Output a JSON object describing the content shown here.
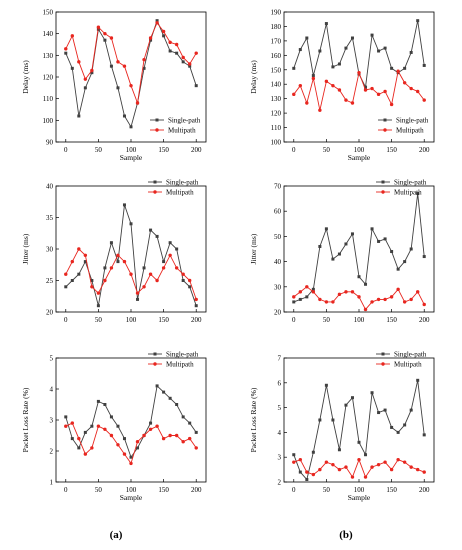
{
  "panel_labels": [
    "(a)",
    "(b)"
  ],
  "colors": {
    "single": "#404040",
    "multi": "#e8261f"
  },
  "chart_data": [
    {
      "type": "line",
      "title": "",
      "xlabel": "Sample",
      "ylabel": "Delay (ms)",
      "xlim": [
        -15,
        215
      ],
      "ylim": [
        90,
        150
      ],
      "xticks": [
        0,
        50,
        100,
        150,
        200
      ],
      "yticks": [
        90,
        100,
        110,
        120,
        130,
        140,
        150
      ],
      "legend": "bottom-right",
      "series": [
        {
          "name": "Single-path",
          "x": [
            0,
            10,
            20,
            30,
            40,
            50,
            60,
            70,
            80,
            90,
            100,
            110,
            120,
            130,
            140,
            150,
            160,
            170,
            180,
            190,
            200
          ],
          "y": [
            131,
            124,
            102,
            115,
            122,
            142,
            137,
            125,
            115,
            102,
            97,
            108,
            124,
            137,
            146,
            139,
            132,
            131,
            127,
            125,
            116
          ]
        },
        {
          "name": "Multipath",
          "x": [
            0,
            10,
            20,
            30,
            40,
            50,
            60,
            70,
            80,
            90,
            100,
            110,
            120,
            130,
            140,
            150,
            160,
            170,
            180,
            190,
            200
          ],
          "y": [
            133,
            139,
            127,
            119,
            123,
            143,
            140,
            138,
            127,
            125,
            116,
            108,
            128,
            138,
            145,
            141,
            136,
            135,
            129,
            126,
            131
          ]
        }
      ]
    },
    {
      "type": "line",
      "title": "",
      "xlabel": "Sample",
      "ylabel": "Delay (ms)",
      "xlim": [
        -15,
        215
      ],
      "ylim": [
        100,
        190
      ],
      "xticks": [
        0,
        50,
        100,
        150,
        200
      ],
      "yticks": [
        100,
        110,
        120,
        130,
        140,
        150,
        160,
        170,
        180,
        190
      ],
      "legend": "bottom-right",
      "series": [
        {
          "name": "Single-path",
          "x": [
            0,
            10,
            20,
            30,
            40,
            50,
            60,
            70,
            80,
            90,
            100,
            110,
            120,
            130,
            140,
            150,
            160,
            170,
            180,
            190,
            200
          ],
          "y": [
            151,
            164,
            172,
            146,
            163,
            182,
            152,
            154,
            165,
            172,
            147,
            138,
            174,
            163,
            165,
            151,
            148,
            151,
            162,
            184,
            153
          ]
        },
        {
          "name": "Multipath",
          "x": [
            0,
            10,
            20,
            30,
            40,
            50,
            60,
            70,
            80,
            90,
            100,
            110,
            120,
            130,
            140,
            150,
            160,
            170,
            180,
            190,
            200
          ],
          "y": [
            133,
            139,
            127,
            144,
            122,
            142,
            139,
            136,
            129,
            127,
            148,
            136,
            137,
            133,
            135,
            126,
            149,
            141,
            137,
            135,
            129
          ]
        }
      ]
    },
    {
      "type": "line",
      "title": "",
      "xlabel": "",
      "ylabel": "Jitter (ms)",
      "xlim": [
        -15,
        215
      ],
      "ylim": [
        20,
        40
      ],
      "xticks": [
        0,
        50,
        100,
        150,
        200
      ],
      "yticks": [
        20,
        25,
        30,
        35,
        40
      ],
      "legend": "top-right",
      "series": [
        {
          "name": "Single-path",
          "x": [
            0,
            10,
            20,
            30,
            40,
            50,
            60,
            70,
            80,
            90,
            100,
            110,
            120,
            130,
            140,
            150,
            160,
            170,
            180,
            190,
            200
          ],
          "y": [
            24,
            25,
            26,
            28,
            25,
            21,
            27,
            31,
            28,
            37,
            34,
            22,
            27,
            33,
            32,
            28,
            31,
            30,
            25,
            24,
            21
          ]
        },
        {
          "name": "Multipath",
          "x": [
            0,
            10,
            20,
            30,
            40,
            50,
            60,
            70,
            80,
            90,
            100,
            110,
            120,
            130,
            140,
            150,
            160,
            170,
            180,
            190,
            200
          ],
          "y": [
            26,
            28,
            30,
            29,
            24,
            23,
            25,
            27,
            29,
            28,
            26,
            23,
            24,
            26,
            25,
            27,
            29,
            27,
            26,
            25,
            22
          ]
        }
      ]
    },
    {
      "type": "line",
      "title": "",
      "xlabel": "",
      "ylabel": "Jitter (ms)",
      "xlim": [
        -15,
        215
      ],
      "ylim": [
        20,
        70
      ],
      "xticks": [
        0,
        50,
        100,
        150,
        200
      ],
      "yticks": [
        20,
        30,
        40,
        50,
        60,
        70
      ],
      "legend": "top-right",
      "series": [
        {
          "name": "Single-path",
          "x": [
            0,
            10,
            20,
            30,
            40,
            50,
            60,
            70,
            80,
            90,
            100,
            110,
            120,
            130,
            140,
            150,
            160,
            170,
            180,
            190,
            200
          ],
          "y": [
            24,
            25,
            26,
            29,
            46,
            53,
            41,
            43,
            47,
            51,
            34,
            31,
            53,
            48,
            49,
            44,
            37,
            40,
            45,
            67,
            42
          ]
        },
        {
          "name": "Multipath",
          "x": [
            0,
            10,
            20,
            30,
            40,
            50,
            60,
            70,
            80,
            90,
            100,
            110,
            120,
            130,
            140,
            150,
            160,
            170,
            180,
            190,
            200
          ],
          "y": [
            26,
            28,
            30,
            28,
            25,
            24,
            24,
            27,
            28,
            28,
            26,
            21,
            24,
            25,
            25,
            26,
            29,
            24,
            25,
            28,
            23
          ]
        }
      ]
    },
    {
      "type": "line",
      "title": "",
      "xlabel": "Sample",
      "ylabel": "Packet Loss Rate (%)",
      "xlim": [
        -15,
        215
      ],
      "ylim": [
        1,
        5
      ],
      "xticks": [
        0,
        50,
        100,
        150,
        200
      ],
      "yticks": [
        1,
        2,
        3,
        4,
        5
      ],
      "legend": "top-right",
      "series": [
        {
          "name": "Single-path",
          "x": [
            0,
            10,
            20,
            30,
            40,
            50,
            60,
            70,
            80,
            90,
            100,
            110,
            120,
            130,
            140,
            150,
            160,
            170,
            180,
            190,
            200
          ],
          "y": [
            3.1,
            2.4,
            2.1,
            2.6,
            2.8,
            3.6,
            3.5,
            3.1,
            2.8,
            2.4,
            1.8,
            2.1,
            2.5,
            2.9,
            4.1,
            3.9,
            3.7,
            3.5,
            3.1,
            2.9,
            2.6
          ]
        },
        {
          "name": "Multipath",
          "x": [
            0,
            10,
            20,
            30,
            40,
            50,
            60,
            70,
            80,
            90,
            100,
            110,
            120,
            130,
            140,
            150,
            160,
            170,
            180,
            190,
            200
          ],
          "y": [
            2.8,
            2.9,
            2.4,
            1.9,
            2.1,
            2.8,
            2.7,
            2.5,
            2.2,
            1.9,
            1.6,
            2.3,
            2.5,
            2.7,
            2.8,
            2.4,
            2.5,
            2.5,
            2.3,
            2.4,
            2.1
          ]
        }
      ]
    },
    {
      "type": "line",
      "title": "",
      "xlabel": "Sample",
      "ylabel": "Packet Loss Rate (%)",
      "xlim": [
        -15,
        215
      ],
      "ylim": [
        2,
        7
      ],
      "xticks": [
        0,
        50,
        100,
        150,
        200
      ],
      "yticks": [
        2,
        3,
        4,
        5,
        6,
        7
      ],
      "legend": "top-right",
      "series": [
        {
          "name": "Single-path",
          "x": [
            0,
            10,
            20,
            30,
            40,
            50,
            60,
            70,
            80,
            90,
            100,
            110,
            120,
            130,
            140,
            150,
            160,
            170,
            180,
            190,
            200
          ],
          "y": [
            3.1,
            2.4,
            2.1,
            3.2,
            4.5,
            5.9,
            4.5,
            3.3,
            5.1,
            5.4,
            3.6,
            3.1,
            5.6,
            4.8,
            4.9,
            4.2,
            4.0,
            4.3,
            4.9,
            6.1,
            3.9
          ]
        },
        {
          "name": "Multipath",
          "x": [
            0,
            10,
            20,
            30,
            40,
            50,
            60,
            70,
            80,
            90,
            100,
            110,
            120,
            130,
            140,
            150,
            160,
            170,
            180,
            190,
            200
          ],
          "y": [
            2.8,
            2.9,
            2.4,
            2.3,
            2.5,
            2.8,
            2.7,
            2.5,
            2.6,
            2.2,
            2.9,
            2.2,
            2.6,
            2.7,
            2.8,
            2.5,
            2.9,
            2.8,
            2.6,
            2.5,
            2.4
          ]
        }
      ]
    }
  ]
}
